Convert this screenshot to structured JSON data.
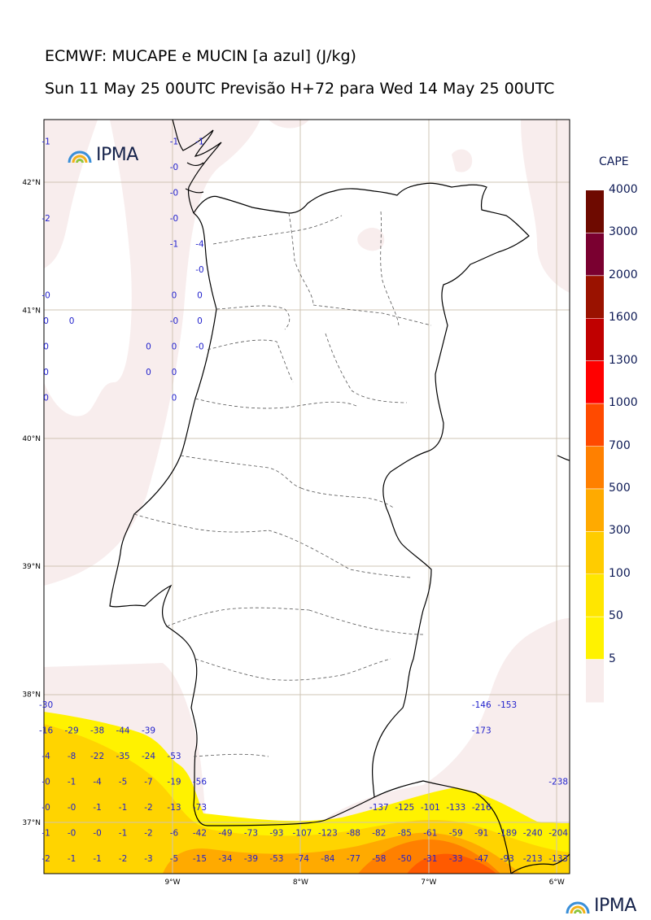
{
  "header": {
    "title_line1": "ECMWF: MUCAPE e MUCIN [a azul] (J/kg)",
    "title_line2": "Sun 11 May 25 00UTC Previsão H+72 para Wed 14 May 25 00UTC"
  },
  "logo": {
    "text": "IPMA"
  },
  "map": {
    "lat_labels": [
      "42°N",
      "41°N",
      "40°N",
      "39°N",
      "38°N",
      "37°N"
    ],
    "lon_labels": [
      "9°W",
      "8°W",
      "7°W",
      "6°W"
    ]
  },
  "colorbar": {
    "title": "CAPE",
    "levels": [
      "4000",
      "3000",
      "2000",
      "1600",
      "1300",
      "1000",
      "700",
      "500",
      "300",
      "100",
      "50",
      "5"
    ],
    "colors": [
      "#6e0a00",
      "#7a0030",
      "#9a1200",
      "#c00000",
      "#ff0000",
      "#ff4a00",
      "#ff8000",
      "#ffaa00",
      "#ffcc00",
      "#ffe600",
      "#fff200",
      "#f8ecec"
    ]
  },
  "cin_values": [
    {
      "lon": -10.0,
      "lat": 42.32,
      "v": "-1"
    },
    {
      "lon": -9.0,
      "lat": 42.32,
      "v": "-1"
    },
    {
      "lon": -8.8,
      "lat": 42.32,
      "v": "-1"
    },
    {
      "lon": -9.0,
      "lat": 42.12,
      "v": "-0"
    },
    {
      "lon": -9.0,
      "lat": 41.92,
      "v": "-0"
    },
    {
      "lon": -10.0,
      "lat": 41.72,
      "v": "-2"
    },
    {
      "lon": -9.0,
      "lat": 41.72,
      "v": "-0"
    },
    {
      "lon": -9.0,
      "lat": 41.52,
      "v": "-1"
    },
    {
      "lon": -8.8,
      "lat": 41.52,
      "v": "-4"
    },
    {
      "lon": -8.8,
      "lat": 41.32,
      "v": "-0"
    },
    {
      "lon": -10.0,
      "lat": 41.12,
      "v": "-0"
    },
    {
      "lon": -9.0,
      "lat": 41.12,
      "v": "0"
    },
    {
      "lon": -8.8,
      "lat": 41.12,
      "v": "0"
    },
    {
      "lon": -10.0,
      "lat": 40.92,
      "v": "0"
    },
    {
      "lon": -9.8,
      "lat": 40.92,
      "v": "0"
    },
    {
      "lon": -9.0,
      "lat": 40.92,
      "v": "-0"
    },
    {
      "lon": -8.8,
      "lat": 40.92,
      "v": "0"
    },
    {
      "lon": -10.0,
      "lat": 40.72,
      "v": "0"
    },
    {
      "lon": -9.2,
      "lat": 40.72,
      "v": "0"
    },
    {
      "lon": -9.0,
      "lat": 40.72,
      "v": "0"
    },
    {
      "lon": -8.8,
      "lat": 40.72,
      "v": "-0"
    },
    {
      "lon": -10.0,
      "lat": 40.52,
      "v": "0"
    },
    {
      "lon": -9.2,
      "lat": 40.52,
      "v": "0"
    },
    {
      "lon": -9.0,
      "lat": 40.52,
      "v": "0"
    },
    {
      "lon": -10.0,
      "lat": 40.32,
      "v": "0"
    },
    {
      "lon": -9.0,
      "lat": 40.32,
      "v": "0"
    },
    {
      "lon": -10.0,
      "lat": 37.92,
      "v": "-30"
    },
    {
      "lon": -6.6,
      "lat": 37.92,
      "v": "-146"
    },
    {
      "lon": -6.4,
      "lat": 37.92,
      "v": "-153"
    },
    {
      "lon": -10.0,
      "lat": 37.72,
      "v": "-16"
    },
    {
      "lon": -9.8,
      "lat": 37.72,
      "v": "-29"
    },
    {
      "lon": -9.6,
      "lat": 37.72,
      "v": "-38"
    },
    {
      "lon": -9.4,
      "lat": 37.72,
      "v": "-44"
    },
    {
      "lon": -9.2,
      "lat": 37.72,
      "v": "-39"
    },
    {
      "lon": -6.6,
      "lat": 37.72,
      "v": "-173"
    },
    {
      "lon": -10.0,
      "lat": 37.52,
      "v": "-4"
    },
    {
      "lon": -9.8,
      "lat": 37.52,
      "v": "-8"
    },
    {
      "lon": -9.6,
      "lat": 37.52,
      "v": "-22"
    },
    {
      "lon": -9.4,
      "lat": 37.52,
      "v": "-35"
    },
    {
      "lon": -9.2,
      "lat": 37.52,
      "v": "-24"
    },
    {
      "lon": -9.0,
      "lat": 37.52,
      "v": "-53"
    },
    {
      "lon": -10.0,
      "lat": 37.32,
      "v": "-0"
    },
    {
      "lon": -9.8,
      "lat": 37.32,
      "v": "-1"
    },
    {
      "lon": -9.6,
      "lat": 37.32,
      "v": "-4"
    },
    {
      "lon": -9.4,
      "lat": 37.32,
      "v": "-5"
    },
    {
      "lon": -9.2,
      "lat": 37.32,
      "v": "-7"
    },
    {
      "lon": -9.0,
      "lat": 37.32,
      "v": "-19"
    },
    {
      "lon": -8.8,
      "lat": 37.32,
      "v": "-56"
    },
    {
      "lon": -6.0,
      "lat": 37.32,
      "v": "-238"
    },
    {
      "lon": -10.0,
      "lat": 37.12,
      "v": "-0"
    },
    {
      "lon": -9.8,
      "lat": 37.12,
      "v": "-0"
    },
    {
      "lon": -9.6,
      "lat": 37.12,
      "v": "-1"
    },
    {
      "lon": -9.4,
      "lat": 37.12,
      "v": "-1"
    },
    {
      "lon": -9.2,
      "lat": 37.12,
      "v": "-2"
    },
    {
      "lon": -9.0,
      "lat": 37.12,
      "v": "-13"
    },
    {
      "lon": -8.8,
      "lat": 37.12,
      "v": "-73"
    },
    {
      "lon": -7.4,
      "lat": 37.12,
      "v": "-137"
    },
    {
      "lon": -7.2,
      "lat": 37.12,
      "v": "-125"
    },
    {
      "lon": -7.0,
      "lat": 37.12,
      "v": "-101"
    },
    {
      "lon": -6.8,
      "lat": 37.12,
      "v": "-133"
    },
    {
      "lon": -6.6,
      "lat": 37.12,
      "v": "-216"
    },
    {
      "lon": -10.0,
      "lat": 36.92,
      "v": "-1"
    },
    {
      "lon": -9.8,
      "lat": 36.92,
      "v": "-0"
    },
    {
      "lon": -9.6,
      "lat": 36.92,
      "v": "-0"
    },
    {
      "lon": -9.4,
      "lat": 36.92,
      "v": "-1"
    },
    {
      "lon": -9.2,
      "lat": 36.92,
      "v": "-2"
    },
    {
      "lon": -9.0,
      "lat": 36.92,
      "v": "-6"
    },
    {
      "lon": -8.8,
      "lat": 36.92,
      "v": "-42"
    },
    {
      "lon": -8.6,
      "lat": 36.92,
      "v": "-49"
    },
    {
      "lon": -8.4,
      "lat": 36.92,
      "v": "-73"
    },
    {
      "lon": -8.2,
      "lat": 36.92,
      "v": "-93"
    },
    {
      "lon": -8.0,
      "lat": 36.92,
      "v": "-107"
    },
    {
      "lon": -7.8,
      "lat": 36.92,
      "v": "-123"
    },
    {
      "lon": -7.6,
      "lat": 36.92,
      "v": "-88"
    },
    {
      "lon": -7.4,
      "lat": 36.92,
      "v": "-82"
    },
    {
      "lon": -7.2,
      "lat": 36.92,
      "v": "-85"
    },
    {
      "lon": -7.0,
      "lat": 36.92,
      "v": "-61"
    },
    {
      "lon": -6.8,
      "lat": 36.92,
      "v": "-59"
    },
    {
      "lon": -6.6,
      "lat": 36.92,
      "v": "-91"
    },
    {
      "lon": -6.4,
      "lat": 36.92,
      "v": "-189"
    },
    {
      "lon": -6.2,
      "lat": 36.92,
      "v": "-240"
    },
    {
      "lon": -6.0,
      "lat": 36.92,
      "v": "-204"
    },
    {
      "lon": -10.0,
      "lat": 36.72,
      "v": "-2"
    },
    {
      "lon": -9.8,
      "lat": 36.72,
      "v": "-1"
    },
    {
      "lon": -9.6,
      "lat": 36.72,
      "v": "-1"
    },
    {
      "lon": -9.4,
      "lat": 36.72,
      "v": "-2"
    },
    {
      "lon": -9.2,
      "lat": 36.72,
      "v": "-3"
    },
    {
      "lon": -9.0,
      "lat": 36.72,
      "v": "-5"
    },
    {
      "lon": -8.8,
      "lat": 36.72,
      "v": "-15"
    },
    {
      "lon": -8.6,
      "lat": 36.72,
      "v": "-34"
    },
    {
      "lon": -8.4,
      "lat": 36.72,
      "v": "-39"
    },
    {
      "lon": -8.2,
      "lat": 36.72,
      "v": "-53"
    },
    {
      "lon": -8.0,
      "lat": 36.72,
      "v": "-74"
    },
    {
      "lon": -7.8,
      "lat": 36.72,
      "v": "-84"
    },
    {
      "lon": -7.6,
      "lat": 36.72,
      "v": "-77"
    },
    {
      "lon": -7.4,
      "lat": 36.72,
      "v": "-58"
    },
    {
      "lon": -7.2,
      "lat": 36.72,
      "v": "-50"
    },
    {
      "lon": -7.0,
      "lat": 36.72,
      "v": "-31"
    },
    {
      "lon": -6.8,
      "lat": 36.72,
      "v": "-33"
    },
    {
      "lon": -6.6,
      "lat": 36.72,
      "v": "-47"
    },
    {
      "lon": -6.4,
      "lat": 36.72,
      "v": "-93"
    },
    {
      "lon": -6.2,
      "lat": 36.72,
      "v": "-213"
    },
    {
      "lon": -6.0,
      "lat": 36.72,
      "v": "-133"
    }
  ]
}
